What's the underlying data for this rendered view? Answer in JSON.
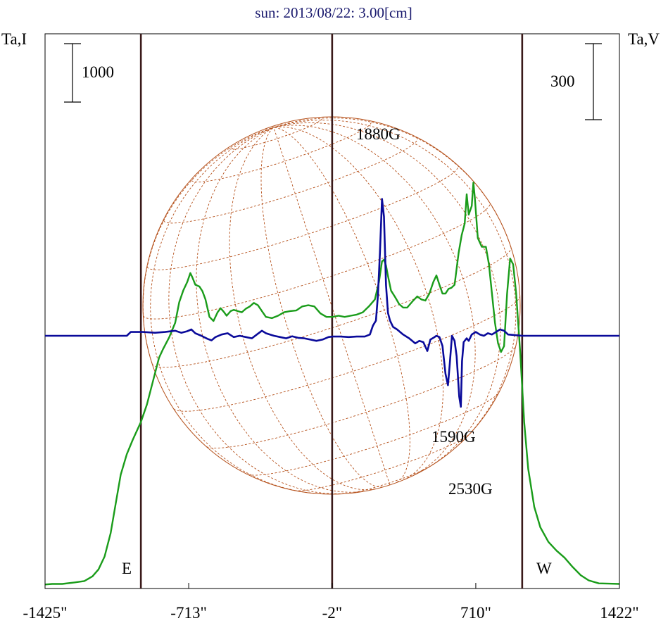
{
  "chart_data": {
    "type": "line",
    "title": "sun: 2013/08/22: 3.00[cm]",
    "ylabel_left": "Ta,I",
    "ylabel_right": "Ta,V",
    "scale_left_label": "1000",
    "scale_right_label": "300",
    "xlim": [
      -1425,
      1422
    ],
    "xticks": [
      -1425,
      -713,
      -2,
      710,
      1422
    ],
    "xtick_labels": [
      "-1425\"",
      "-713\"",
      "-2\"",
      "710\"",
      "1422\""
    ],
    "limb_markers": [
      {
        "label": "E",
        "x": -950
      },
      {
        "label": "W",
        "x": 940
      }
    ],
    "center_marker_x": -2,
    "annotations": [
      {
        "label": "1880G",
        "x": 250
      },
      {
        "label": "1590G",
        "x": 630
      },
      {
        "label": "2530G",
        "x": 705
      }
    ],
    "colors": {
      "title": "#1a1a6e",
      "intensity": "#1a9c1a",
      "polarization": "#0a0a9a",
      "solar_grid": "#b5501a",
      "marker_lines": "#3a1a1a"
    },
    "series": [
      {
        "name": "Ta,I",
        "points": [
          [
            -1425,
            20
          ],
          [
            -1390,
            30
          ],
          [
            -1340,
            30
          ],
          [
            -1280,
            55
          ],
          [
            -1230,
            80
          ],
          [
            -1190,
            160
          ],
          [
            -1160,
            280
          ],
          [
            -1130,
            500
          ],
          [
            -1100,
            900
          ],
          [
            -1075,
            1400
          ],
          [
            -1050,
            1900
          ],
          [
            -1020,
            2250
          ],
          [
            -990,
            2500
          ],
          [
            -950,
            2800
          ],
          [
            -920,
            3100
          ],
          [
            -890,
            3500
          ],
          [
            -860,
            3900
          ],
          [
            -840,
            4050
          ],
          [
            -810,
            4250
          ],
          [
            -780,
            4500
          ],
          [
            -760,
            4850
          ],
          [
            -740,
            5050
          ],
          [
            -720,
            5200
          ],
          [
            -705,
            5350
          ],
          [
            -695,
            5280
          ],
          [
            -680,
            5150
          ],
          [
            -660,
            5120
          ],
          [
            -645,
            5040
          ],
          [
            -630,
            4900
          ],
          [
            -610,
            4600
          ],
          [
            -590,
            4530
          ],
          [
            -570,
            4680
          ],
          [
            -555,
            4750
          ],
          [
            -540,
            4690
          ],
          [
            -525,
            4620
          ],
          [
            -505,
            4700
          ],
          [
            -490,
            4720
          ],
          [
            -470,
            4700
          ],
          [
            -450,
            4680
          ],
          [
            -430,
            4740
          ],
          [
            -410,
            4780
          ],
          [
            -390,
            4840
          ],
          [
            -370,
            4800
          ],
          [
            -350,
            4700
          ],
          [
            -330,
            4600
          ],
          [
            -300,
            4580
          ],
          [
            -270,
            4620
          ],
          [
            -240,
            4680
          ],
          [
            -210,
            4700
          ],
          [
            -180,
            4710
          ],
          [
            -150,
            4780
          ],
          [
            -120,
            4800
          ],
          [
            -90,
            4780
          ],
          [
            -60,
            4660
          ],
          [
            -30,
            4600
          ],
          [
            0,
            4600
          ],
          [
            30,
            4620
          ],
          [
            60,
            4600
          ],
          [
            90,
            4620
          ],
          [
            120,
            4640
          ],
          [
            150,
            4680
          ],
          [
            180,
            4780
          ],
          [
            210,
            4900
          ],
          [
            230,
            5200
          ],
          [
            245,
            5550
          ],
          [
            255,
            5580
          ],
          [
            265,
            5480
          ],
          [
            275,
            5300
          ],
          [
            290,
            5050
          ],
          [
            310,
            4940
          ],
          [
            330,
            4820
          ],
          [
            350,
            4760
          ],
          [
            370,
            4760
          ],
          [
            395,
            4860
          ],
          [
            420,
            4950
          ],
          [
            440,
            4900
          ],
          [
            460,
            4880
          ],
          [
            480,
            5000
          ],
          [
            500,
            5200
          ],
          [
            515,
            5310
          ],
          [
            530,
            5150
          ],
          [
            545,
            5000
          ],
          [
            560,
            5000
          ],
          [
            575,
            5080
          ],
          [
            590,
            5100
          ],
          [
            605,
            5150
          ],
          [
            625,
            5700
          ],
          [
            640,
            6000
          ],
          [
            655,
            6200
          ],
          [
            665,
            6700
          ],
          [
            675,
            6350
          ],
          [
            690,
            6500
          ],
          [
            698,
            6900
          ],
          [
            705,
            6650
          ],
          [
            720,
            5950
          ],
          [
            740,
            5800
          ],
          [
            760,
            5800
          ],
          [
            775,
            5500
          ],
          [
            790,
            5000
          ],
          [
            805,
            4500
          ],
          [
            820,
            4150
          ],
          [
            835,
            4000
          ],
          [
            850,
            4100
          ],
          [
            865,
            5000
          ],
          [
            880,
            5600
          ],
          [
            895,
            5500
          ],
          [
            910,
            5000
          ],
          [
            930,
            4000
          ],
          [
            950,
            2800
          ],
          [
            970,
            2000
          ],
          [
            1000,
            1350
          ],
          [
            1030,
            1000
          ],
          [
            1070,
            750
          ],
          [
            1110,
            600
          ],
          [
            1150,
            480
          ],
          [
            1190,
            320
          ],
          [
            1230,
            180
          ],
          [
            1270,
            90
          ],
          [
            1320,
            40
          ],
          [
            1370,
            35
          ],
          [
            1422,
            30
          ]
        ]
      },
      {
        "name": "Ta,V",
        "points": [
          [
            -1425,
            0
          ],
          [
            -1020,
            0
          ],
          [
            -1000,
            15
          ],
          [
            -940,
            15
          ],
          [
            -880,
            12
          ],
          [
            -830,
            15
          ],
          [
            -780,
            20
          ],
          [
            -750,
            12
          ],
          [
            -720,
            18
          ],
          [
            -700,
            25
          ],
          [
            -680,
            10
          ],
          [
            -650,
            0
          ],
          [
            -620,
            -12
          ],
          [
            -600,
            -18
          ],
          [
            -580,
            -5
          ],
          [
            -550,
            5
          ],
          [
            -520,
            10
          ],
          [
            -490,
            -5
          ],
          [
            -460,
            0
          ],
          [
            -430,
            -5
          ],
          [
            -400,
            -10
          ],
          [
            -375,
            5
          ],
          [
            -350,
            20
          ],
          [
            -330,
            10
          ],
          [
            -310,
            5
          ],
          [
            -290,
            0
          ],
          [
            -260,
            -5
          ],
          [
            -230,
            -10
          ],
          [
            -200,
            -2
          ],
          [
            -170,
            -8
          ],
          [
            -140,
            -10
          ],
          [
            -110,
            -15
          ],
          [
            -80,
            -20
          ],
          [
            -50,
            -15
          ],
          [
            -20,
            -5
          ],
          [
            0,
            -3
          ],
          [
            40,
            -3
          ],
          [
            80,
            -5
          ],
          [
            120,
            -3
          ],
          [
            160,
            -3
          ],
          [
            185,
            5
          ],
          [
            200,
            40
          ],
          [
            215,
            60
          ],
          [
            225,
            160
          ],
          [
            235,
            330
          ],
          [
            245,
            540
          ],
          [
            255,
            470
          ],
          [
            265,
            200
          ],
          [
            275,
            90
          ],
          [
            285,
            60
          ],
          [
            300,
            35
          ],
          [
            320,
            25
          ],
          [
            350,
            5
          ],
          [
            380,
            -10
          ],
          [
            410,
            -30
          ],
          [
            430,
            -20
          ],
          [
            450,
            -25
          ],
          [
            470,
            -60
          ],
          [
            485,
            -15
          ],
          [
            500,
            -8
          ],
          [
            515,
            0
          ],
          [
            530,
            -5
          ],
          [
            545,
            -40
          ],
          [
            560,
            -150
          ],
          [
            572,
            -195
          ],
          [
            580,
            -120
          ],
          [
            592,
            0
          ],
          [
            605,
            -20
          ],
          [
            615,
            -80
          ],
          [
            628,
            -240
          ],
          [
            636,
            -280
          ],
          [
            642,
            -100
          ],
          [
            650,
            -25
          ],
          [
            665,
            -10
          ],
          [
            675,
            -20
          ],
          [
            690,
            5
          ],
          [
            710,
            15
          ],
          [
            730,
            5
          ],
          [
            750,
            0
          ],
          [
            770,
            10
          ],
          [
            790,
            5
          ],
          [
            810,
            15
          ],
          [
            830,
            25
          ],
          [
            850,
            20
          ],
          [
            870,
            5
          ],
          [
            900,
            3
          ],
          [
            940,
            0
          ],
          [
            1422,
            0
          ]
        ]
      }
    ]
  }
}
